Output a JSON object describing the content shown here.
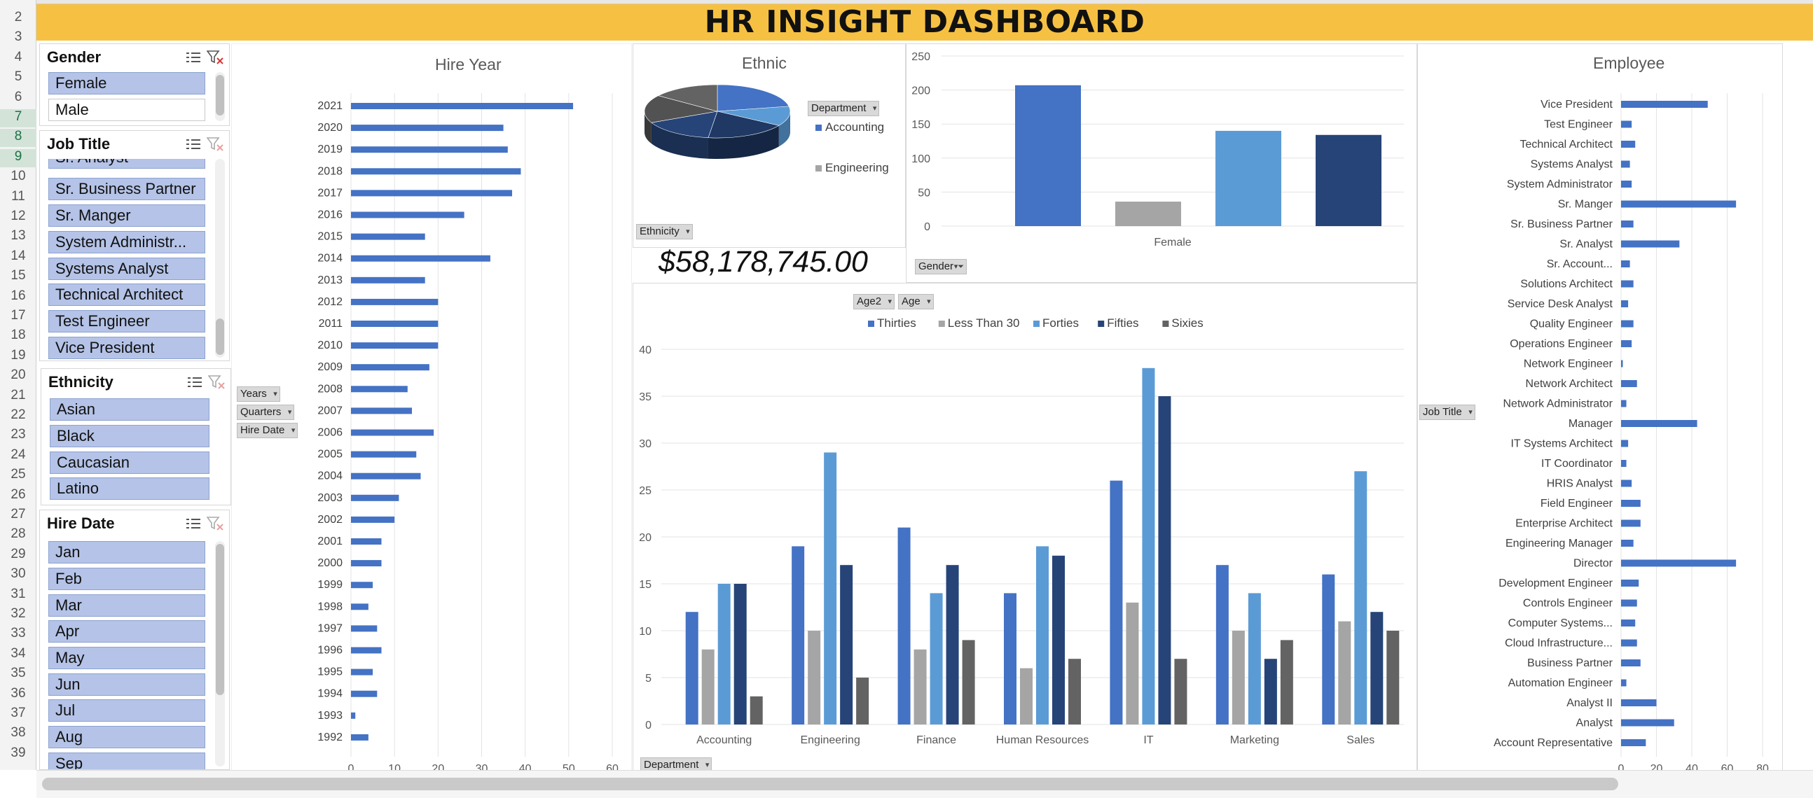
{
  "dashboard_title": "HR INSIGHT DASHBOARD",
  "row_numbers": [
    "2",
    "3",
    "4",
    "5",
    "6",
    "7",
    "8",
    "9",
    "10",
    "11",
    "12",
    "13",
    "14",
    "15",
    "16",
    "17",
    "18",
    "19",
    "20",
    "21",
    "22",
    "23",
    "24",
    "25",
    "26",
    "27",
    "28",
    "29",
    "30",
    "31",
    "32",
    "33",
    "34",
    "35",
    "36",
    "37",
    "38",
    "39"
  ],
  "slicers": {
    "gender": {
      "title": "Gender",
      "items": [
        {
          "label": "Female",
          "selected": true
        },
        {
          "label": "Male",
          "selected": false
        }
      ]
    },
    "job_title": {
      "title": "Job Title",
      "items": [
        "Sr. Analyst",
        "Sr. Business Partner",
        "Sr. Manger",
        "System Administr...",
        "Systems Analyst",
        "Technical Architect",
        "Test Engineer",
        "Vice President"
      ]
    },
    "ethnicity": {
      "title": "Ethnicity",
      "items": [
        "Asian",
        "Black",
        "Caucasian",
        "Latino"
      ]
    },
    "hire_date": {
      "title": "Hire Date",
      "items": [
        "Jan",
        "Feb",
        "Mar",
        "Apr",
        "May",
        "Jun",
        "Jul",
        "Aug",
        "Sep"
      ]
    }
  },
  "pivot_buttons": {
    "years": "Years",
    "quarters": "Quarters",
    "hire_date": "Hire Date",
    "department_legend": "Department",
    "ethnicity": "Ethnicity",
    "gender": "Gender",
    "age2": "Age2",
    "age": "Age",
    "department_axis": "Department",
    "job_title": "Job Title"
  },
  "total_salary": "$58,178,745.00",
  "colors": {
    "accent": "#f6c143",
    "blue": "#4472c4",
    "gray": "#a5a5a5",
    "light_blue": "#5b9bd5",
    "navy": "#264478",
    "dark_gray": "#636363",
    "slicer_selected": "#b4c3e7"
  },
  "chart_data": [
    {
      "id": "hire_year",
      "type": "bar",
      "orientation": "horizontal",
      "title": "Hire Year",
      "categories": [
        "2021",
        "2020",
        "2019",
        "2018",
        "2017",
        "2016",
        "2015",
        "2014",
        "2013",
        "2012",
        "2011",
        "2010",
        "2009",
        "2008",
        "2007",
        "2006",
        "2005",
        "2004",
        "2003",
        "2002",
        "2001",
        "2000",
        "1999",
        "1998",
        "1997",
        "1996",
        "1995",
        "1994",
        "1993",
        "1992"
      ],
      "values": [
        51,
        35,
        36,
        39,
        37,
        26,
        17,
        32,
        17,
        20,
        20,
        20,
        18,
        13,
        14,
        19,
        15,
        16,
        11,
        10,
        7,
        7,
        5,
        4,
        6,
        7,
        5,
        6,
        1,
        4
      ],
      "xlim": [
        0,
        60
      ],
      "xticks": [
        "0",
        "10",
        "20",
        "30",
        "40",
        "50",
        "60"
      ],
      "grid": true
    },
    {
      "id": "ethnic",
      "type": "pie",
      "title": "Ethnic",
      "legend": [
        "Accounting",
        "Engineering"
      ],
      "values": [
        22,
        12,
        18,
        16,
        17,
        15
      ],
      "legend_position": "right"
    },
    {
      "id": "gender_bar",
      "type": "bar",
      "categories": [
        "Female"
      ],
      "series": [
        {
          "values": [
            207
          ]
        },
        {
          "values": [
            36
          ]
        },
        {
          "values": [
            140
          ]
        },
        {
          "values": [
            134
          ]
        }
      ],
      "ylim": [
        0,
        250
      ],
      "yticks": [
        "0",
        "50",
        "100",
        "150",
        "200",
        "250"
      ],
      "grid": true
    },
    {
      "id": "department_age",
      "type": "bar",
      "categories": [
        "Accounting",
        "Engineering",
        "Finance",
        "Human Resources",
        "IT",
        "Marketing",
        "Sales"
      ],
      "series": [
        {
          "name": "Thirties",
          "values": [
            12,
            19,
            21,
            14,
            26,
            17,
            16
          ]
        },
        {
          "name": "Less Than 30",
          "values": [
            8,
            10,
            8,
            6,
            13,
            10,
            11
          ]
        },
        {
          "name": "Forties",
          "values": [
            15,
            29,
            14,
            19,
            38,
            14,
            27
          ]
        },
        {
          "name": "Fifties",
          "values": [
            15,
            17,
            17,
            18,
            35,
            7,
            12
          ]
        },
        {
          "name": "Sixies",
          "values": [
            3,
            5,
            9,
            7,
            7,
            9,
            10
          ]
        }
      ],
      "ylim": [
        0,
        40
      ],
      "yticks": [
        "0",
        "5",
        "10",
        "15",
        "20",
        "25",
        "30",
        "35",
        "40"
      ],
      "legend_position": "top",
      "grid": true
    },
    {
      "id": "employee",
      "type": "bar",
      "orientation": "horizontal",
      "title": "Employee",
      "categories": [
        "Vice President",
        "Test Engineer",
        "Technical Architect",
        "Systems Analyst",
        "System Administrator",
        "Sr. Manger",
        "Sr. Business Partner",
        "Sr. Analyst",
        "Sr. Account...",
        "Solutions Architect",
        "Service Desk Analyst",
        "Quality Engineer",
        "Operations Engineer",
        "Network Engineer",
        "Network Architect",
        "Network Administrator",
        "Manager",
        "IT Systems Architect",
        "IT Coordinator",
        "HRIS Analyst",
        "Field Engineer",
        "Enterprise Architect",
        "Engineering Manager",
        "Director",
        "Development Engineer",
        "Controls Engineer",
        "Computer Systems...",
        "Cloud Infrastructure...",
        "Business Partner",
        "Automation Engineer",
        "Analyst II",
        "Analyst",
        "Account Representative"
      ],
      "values": [
        49,
        6,
        8,
        5,
        6,
        65,
        7,
        33,
        5,
        7,
        4,
        7,
        6,
        1,
        9,
        3,
        43,
        4,
        3,
        6,
        11,
        11,
        7,
        65,
        10,
        9,
        8,
        9,
        11,
        3,
        20,
        30,
        14
      ],
      "xlim": [
        0,
        80
      ],
      "xticks": [
        "0",
        "20",
        "40",
        "60",
        "80"
      ],
      "grid": true
    }
  ]
}
